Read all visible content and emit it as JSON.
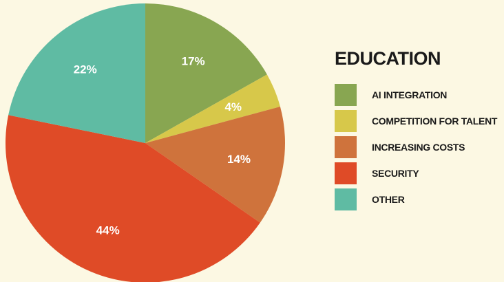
{
  "chart_data": {
    "type": "pie",
    "title": "EDUCATION",
    "categories": [
      "AI INTEGRATION",
      "COMPETITION FOR TALENT",
      "INCREASING COSTS",
      "SECURITY",
      "OTHER"
    ],
    "values": [
      17,
      4,
      14,
      44,
      22
    ],
    "labels": [
      "17%",
      "4%",
      "14%",
      "44%",
      "22%"
    ],
    "colors": [
      "#88a651",
      "#d7c84a",
      "#cf733c",
      "#df4b27",
      "#5fbba3"
    ],
    "start": "12 o'clock",
    "direction": "clockwise",
    "legend_position": "right"
  }
}
